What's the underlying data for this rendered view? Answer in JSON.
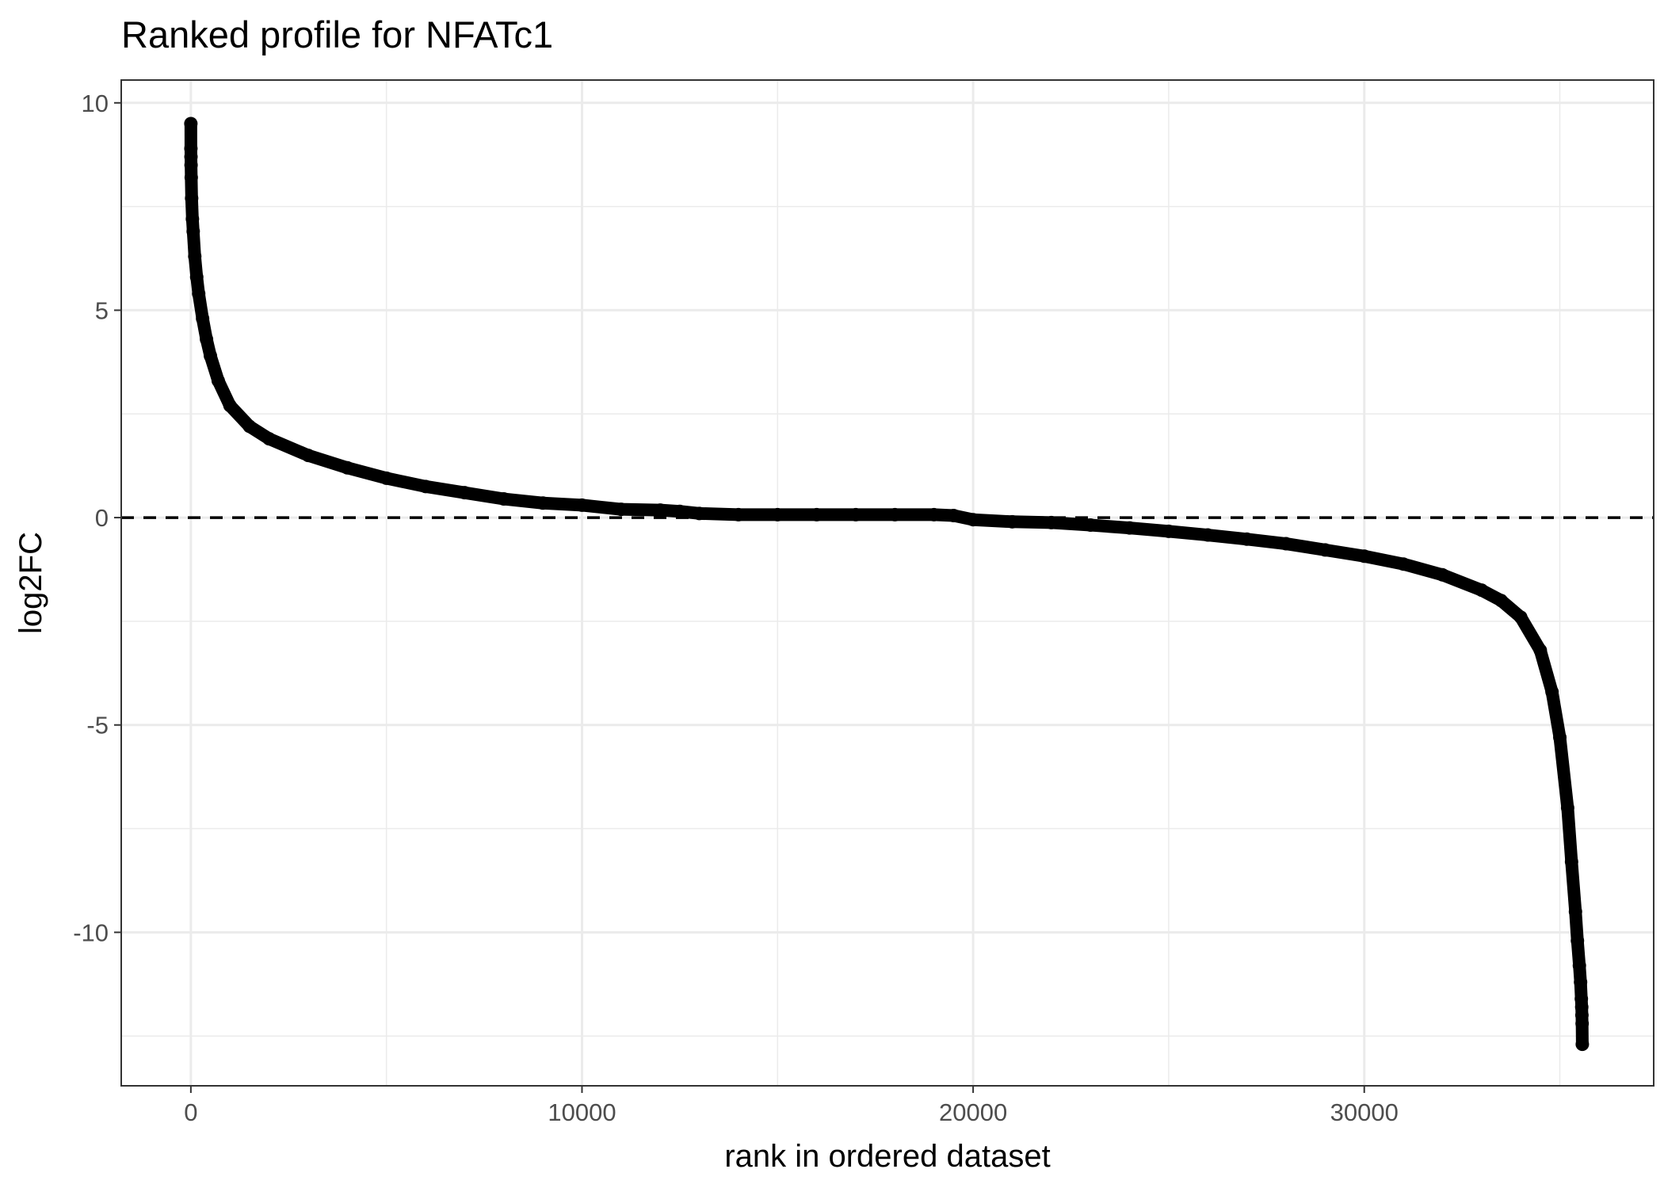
{
  "chart_data": {
    "type": "scatter",
    "title": "Ranked profile for NFATc1",
    "xlabel": "rank in ordered dataset",
    "ylabel": "log2FC",
    "xlim": [
      -1780,
      37400
    ],
    "ylim": [
      -13.7,
      10.55
    ],
    "x_ticks": [
      0,
      10000,
      20000,
      30000
    ],
    "x_tick_labels": [
      "0",
      "10000",
      "20000",
      "30000"
    ],
    "y_ticks": [
      10,
      5,
      0,
      -5,
      -10
    ],
    "y_tick_labels": [
      "10",
      "5",
      "0",
      "-5",
      "-10"
    ],
    "x_minor_ticks": [
      5000,
      15000,
      25000,
      35000
    ],
    "y_minor_ticks": [
      7.5,
      2.5,
      -2.5,
      -7.5,
      -12.5
    ],
    "grid": true,
    "reference_line": {
      "y": 0,
      "style": "dashed"
    },
    "series": [
      {
        "marker": "point",
        "connected": true,
        "color": "#000000",
        "x": [
          0,
          1,
          3,
          5,
          10,
          20,
          40,
          60,
          100,
          150,
          200,
          300,
          400,
          500,
          700,
          1000,
          1500,
          2000,
          3000,
          4000,
          5000,
          6000,
          7000,
          8000,
          9000,
          10000,
          11000,
          12000,
          12500,
          13000,
          14000,
          15000,
          16000,
          17000,
          18000,
          19000,
          19500,
          20000,
          21000,
          22000,
          23000,
          24000,
          25000,
          26000,
          27000,
          28000,
          29000,
          30000,
          31000,
          32000,
          33000,
          33500,
          34000,
          34500,
          34800,
          35000,
          35200,
          35300,
          35400,
          35450,
          35500,
          35530,
          35550,
          35560,
          35565,
          35570,
          35575
        ],
        "y": [
          9.5,
          8.9,
          8.7,
          8.5,
          8.2,
          7.7,
          7.2,
          6.9,
          6.3,
          5.8,
          5.4,
          4.8,
          4.3,
          3.9,
          3.3,
          2.7,
          2.2,
          1.9,
          1.5,
          1.2,
          0.95,
          0.75,
          0.6,
          0.45,
          0.35,
          0.3,
          0.2,
          0.18,
          0.15,
          0.1,
          0.07,
          0.07,
          0.07,
          0.07,
          0.07,
          0.07,
          0.05,
          -0.05,
          -0.1,
          -0.12,
          -0.18,
          -0.25,
          -0.33,
          -0.42,
          -0.52,
          -0.63,
          -0.78,
          -0.93,
          -1.12,
          -1.38,
          -1.75,
          -2.0,
          -2.4,
          -3.2,
          -4.2,
          -5.3,
          -7.0,
          -8.3,
          -9.5,
          -10.2,
          -10.8,
          -11.2,
          -11.6,
          -11.8,
          -12.0,
          -12.2,
          -12.7
        ]
      }
    ]
  }
}
